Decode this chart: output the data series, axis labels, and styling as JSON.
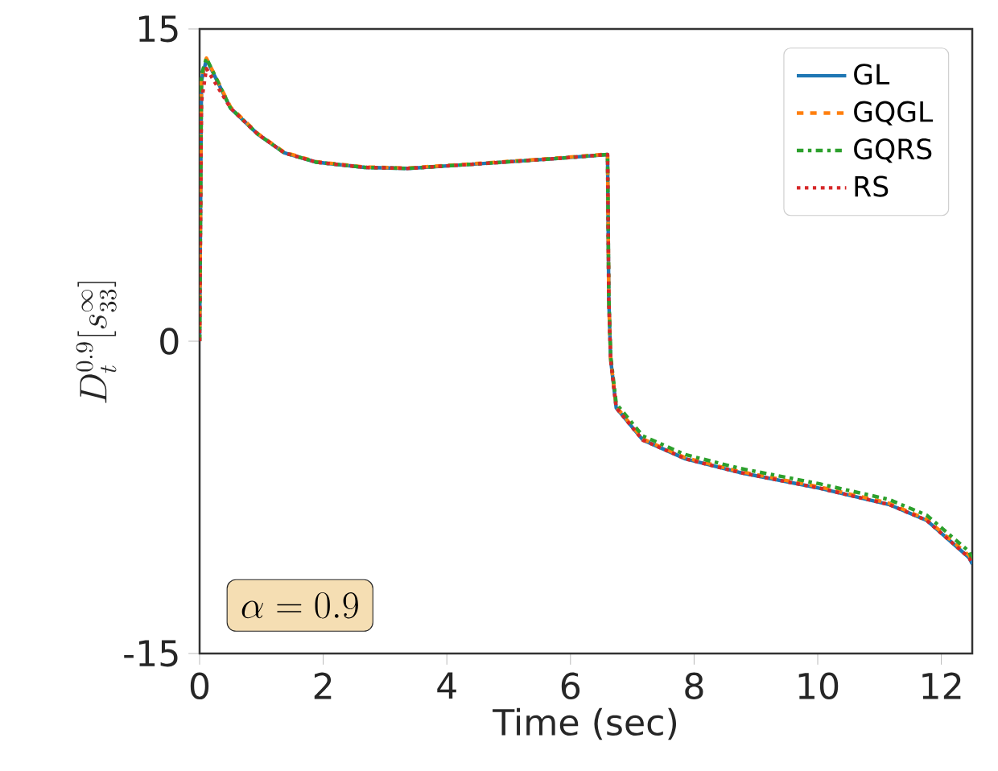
{
  "chart_data": {
    "type": "line",
    "xlabel": "Time (sec)",
    "ylabel": "D_t^{0.9}[s_{33}^{\\infty}]",
    "annotations": [
      "\\alpha = 0.9"
    ],
    "x": [
      0,
      0.03,
      0.11,
      0.5,
      0.94,
      1.37,
      1.89,
      2.67,
      3.36,
      4.4,
      5.7,
      6.6,
      6.62,
      6.65,
      6.74,
      7.17,
      7.86,
      8.73,
      10.03,
      11.15,
      11.76,
      12.45,
      12.5
    ],
    "xlim": [
      0,
      12.5
    ],
    "ylim": [
      -15,
      15
    ],
    "xticks": [
      0,
      2,
      4,
      6,
      8,
      10,
      12
    ],
    "yticks": [
      -15,
      0,
      15
    ],
    "legend": "top right",
    "series": [
      {
        "name": "GL",
        "color": "#1f77b4",
        "line_style": "solid",
        "values": [
          0,
          12.5,
          13.55,
          11.2,
          9.95,
          9.05,
          8.6,
          8.35,
          8.3,
          8.5,
          8.76,
          8.97,
          2,
          -0.87,
          -3.2,
          -4.74,
          -5.65,
          -6.3,
          -7.06,
          -7.84,
          -8.6,
          -10.4,
          -10.7
        ]
      },
      {
        "name": "GQGL",
        "color": "#ff7f0e",
        "line_style": "dashed",
        "values": [
          0,
          12.6,
          13.6,
          11.25,
          9.98,
          9.08,
          8.62,
          8.37,
          8.32,
          8.52,
          8.78,
          8.99,
          2,
          -0.85,
          -3.15,
          -4.7,
          -5.6,
          -6.25,
          -7.0,
          -7.78,
          -8.55,
          -10.3,
          -10.6
        ]
      },
      {
        "name": "GQRS",
        "color": "#2ca02c",
        "line_style": "dashdot",
        "values": [
          0,
          12.8,
          13.6,
          11.2,
          9.95,
          9.05,
          8.6,
          8.35,
          8.3,
          8.5,
          8.76,
          8.97,
          2.2,
          -0.7,
          -3.0,
          -4.55,
          -5.45,
          -6.1,
          -6.85,
          -7.6,
          -8.35,
          -10.1,
          -10.5
        ]
      },
      {
        "name": "RS",
        "color": "#d62728",
        "line_style": "dotted",
        "values": [
          0,
          11.5,
          13.1,
          11.2,
          9.95,
          9.05,
          8.6,
          8.35,
          8.3,
          8.5,
          8.76,
          8.97,
          2,
          -0.9,
          -3.2,
          -4.75,
          -5.65,
          -6.3,
          -7.06,
          -7.84,
          -8.6,
          -10.4,
          -10.7
        ]
      }
    ]
  }
}
